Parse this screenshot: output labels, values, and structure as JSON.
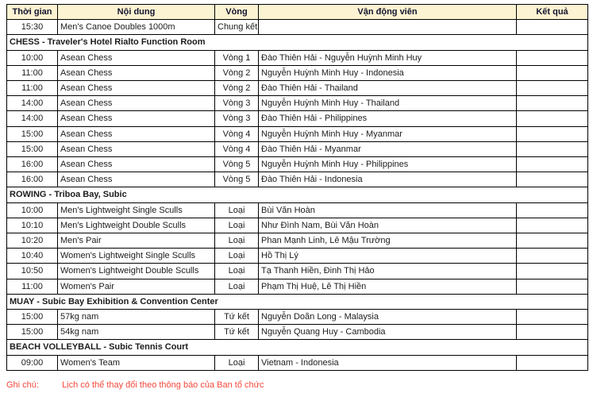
{
  "colors": {
    "header_bg": "#FCF3D2",
    "header_text": "#14142E",
    "body_text": "#1C1C1C",
    "section_text": "#111111",
    "border": "#000000",
    "note_red": "#F4483C"
  },
  "table": {
    "columns": [
      "Thời gian",
      "Nội dung",
      "Vòng",
      "Vận động viên",
      "Kết quả"
    ],
    "rows": [
      {
        "type": "event",
        "time": "15:30",
        "content": "Men's Canoe Doubles 1000m",
        "round": "Chung kết",
        "athletes": "",
        "result": ""
      },
      {
        "type": "section",
        "label": "CHESS - Traveler's Hotel Rialto Function Room"
      },
      {
        "type": "event",
        "time": "10:00",
        "content": "Asean Chess",
        "round": "Vòng 1",
        "athletes": "Đào Thiên Hải - Nguyễn Huỳnh Minh Huy",
        "result": ""
      },
      {
        "type": "event",
        "time": "11:00",
        "content": "Asean Chess",
        "round": "Vòng 2",
        "athletes": "Nguyễn Huỳnh Minh Huy - Indonesia",
        "result": ""
      },
      {
        "type": "event",
        "time": "11:00",
        "content": "Asean Chess",
        "round": "Vòng 2",
        "athletes": "Đào Thiên Hải - Thailand",
        "result": ""
      },
      {
        "type": "event",
        "time": "14:00",
        "content": "Asean Chess",
        "round": "Vòng 3",
        "athletes": "Nguyễn Huỳnh Minh Huy - Thailand",
        "result": ""
      },
      {
        "type": "event",
        "time": "14:00",
        "content": "Asean Chess",
        "round": "Vòng 3",
        "athletes": "Đào Thiên Hải - Philippines",
        "result": ""
      },
      {
        "type": "event",
        "time": "15:00",
        "content": "Asean Chess",
        "round": "Vòng 4",
        "athletes": "Nguyễn Huỳnh Minh Huy - Myanmar",
        "result": ""
      },
      {
        "type": "event",
        "time": "15:00",
        "content": "Asean Chess",
        "round": "Vòng 4",
        "athletes": "Đào Thiên Hải - Myanmar",
        "result": ""
      },
      {
        "type": "event",
        "time": "16:00",
        "content": "Asean Chess",
        "round": "Vòng 5",
        "athletes": "Nguyễn Huỳnh Minh Huy - Philippines",
        "result": ""
      },
      {
        "type": "event",
        "time": "16:00",
        "content": "Asean Chess",
        "round": "Vòng 5",
        "athletes": "Đào Thiên Hải - Indonesia",
        "result": ""
      },
      {
        "type": "section",
        "label": "ROWING - Triboa Bay, Subic"
      },
      {
        "type": "event",
        "time": "10:00",
        "content": "Men's Lightweight Single Sculls",
        "round": "Loại",
        "athletes": "Bùi Văn Hoàn",
        "result": ""
      },
      {
        "type": "event",
        "time": "10:10",
        "content": "Men's Lightweight Double Sculls",
        "round": "Loại",
        "athletes": "Như Đình Nam, Bùi Văn Hoàn",
        "result": ""
      },
      {
        "type": "event",
        "time": "10:20",
        "content": "Men's Pair",
        "round": "Loại",
        "athletes": "Phan Mạnh Linh, Lê Mậu Trường",
        "result": ""
      },
      {
        "type": "event",
        "time": "10:40",
        "content": "Women's Lightweight Single Sculls",
        "round": "Loại",
        "athletes": "Hồ Thị Lý",
        "result": ""
      },
      {
        "type": "event",
        "time": "10:50",
        "content": "Women's Lightweight Double Sculls",
        "round": "Loại",
        "athletes": "Tạ Thanh Hiền, Đinh Thị Hảo",
        "result": ""
      },
      {
        "type": "event",
        "time": "11:00",
        "content": "Women's Pair",
        "round": "Loại",
        "athletes": "Phạm Thị Huệ, Lê Thị Hiền",
        "result": ""
      },
      {
        "type": "section",
        "label": "MUAY - Subic Bay Exhibition & Convention Center"
      },
      {
        "type": "event",
        "time": "15:00",
        "content": "57kg nam",
        "round": "Tứ kết",
        "athletes": "Nguyễn Doãn Long - Malaysia",
        "result": ""
      },
      {
        "type": "event",
        "time": "15:00",
        "content": "54kg nam",
        "round": "Tứ kết",
        "athletes": "Nguyễn Quang Huy - Cambodia",
        "result": ""
      },
      {
        "type": "section",
        "label": "BEACH VOLLEYBALL - Subic Tennis Court"
      },
      {
        "type": "event",
        "time": "09:00",
        "content": "Women's Team",
        "round": "Loại",
        "athletes": "Vietnam - Indonesia",
        "result": ""
      }
    ]
  },
  "note": {
    "label": "Ghi chú:",
    "text": "Lịch có thể thay đổi theo thông báo của Ban tổ chức"
  }
}
